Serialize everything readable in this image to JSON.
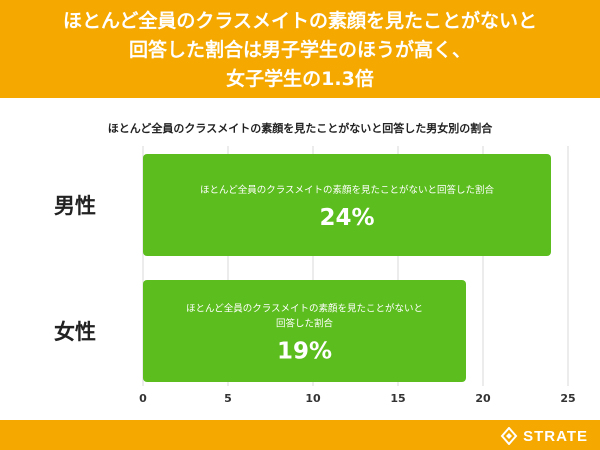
{
  "header": {
    "title_lines": [
      "ほとんど全員のクラスメイトの素顔を見たことがないと",
      "回答した割合は男子学生のほうが高く、",
      "女子学生の1.3倍"
    ]
  },
  "brand": {
    "name": "STRATE"
  },
  "colors": {
    "header": "#f5a800",
    "bar": "#5cbd1e",
    "grid": "#d9d9d9"
  },
  "chart_data": {
    "type": "bar",
    "orientation": "horizontal",
    "title": "ほとんど全員のクラスメイトの素顔を見たことがないと回答した男女別の割合",
    "categories": [
      "男性",
      "女性"
    ],
    "values": [
      24,
      19
    ],
    "bar_labels": [
      [
        "ほとんど全員のクラスメイトの素顔を見たことがないと回答した割合"
      ],
      [
        "ほとんど全員のクラスメイトの素顔を見たことがないと",
        "回答した割合"
      ]
    ],
    "value_labels": [
      "24%",
      "19%"
    ],
    "xlim": [
      0,
      25
    ],
    "xticks": [
      0,
      5,
      10,
      15,
      20,
      25
    ],
    "grid": true
  }
}
